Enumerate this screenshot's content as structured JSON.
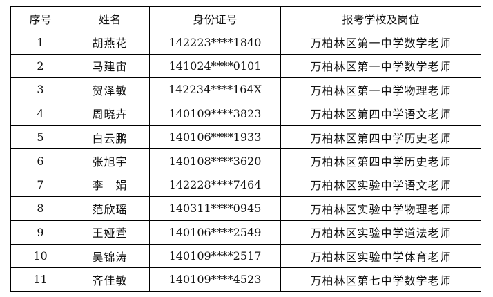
{
  "table": {
    "headers": [
      "序号",
      "姓名",
      "身份证号",
      "报考学校及岗位"
    ],
    "rows": [
      [
        "1",
        "胡燕花",
        "142223****1840",
        "万柏林区第一中学数学老师"
      ],
      [
        "2",
        "马建宙",
        "141024****0101",
        "万柏林区第一中学数学老师"
      ],
      [
        "3",
        "贺泽敏",
        "142234****164X",
        "万柏林区第一中学物理老师"
      ],
      [
        "4",
        "周晓卉",
        "140109****3823",
        "万柏林区第四中学语文老师"
      ],
      [
        "5",
        "白云鹏",
        "140106****1933",
        "万柏林区第四中学历史老师"
      ],
      [
        "6",
        "张旭宇",
        "140108****3620",
        "万柏林区第四中学历史老师"
      ],
      [
        "7",
        "李　娟",
        "142228****7464",
        "万柏林区实验中学语文老师"
      ],
      [
        "8",
        "范欣瑶",
        "140311****0945",
        "万柏林区实验中学物理老师"
      ],
      [
        "9",
        "王娅萱",
        "140106****2549",
        "万柏林区实验中学道法老师"
      ],
      [
        "10",
        "吴锦涛",
        "140109****2517",
        "万柏林区实验中学体育老师"
      ],
      [
        "11",
        "齐佳敏",
        "140109****4523",
        "万柏林区第七中学数学老师"
      ]
    ]
  }
}
